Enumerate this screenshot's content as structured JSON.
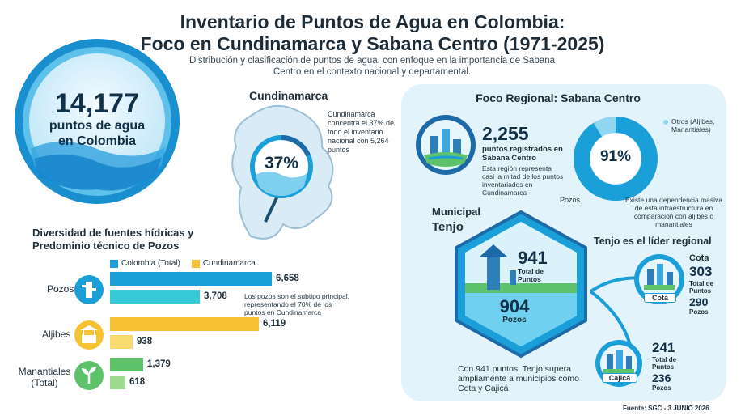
{
  "header": {
    "title_line1": "Inventario de Puntos de Agua en Colombia:",
    "title_line2": "Foco en Cundinamarca y Sabana Centro (1971-2025)",
    "subtitle": "Distribución y clasificación de puntos de agua, con enfoque en la importancia de Sabana Centro en el contexto nacional y departamental."
  },
  "national": {
    "total": "14,177",
    "label_line1": "puntos de agua",
    "label_line2": "en Colombia"
  },
  "cundinamarca": {
    "title": "Cundinamarca",
    "percent": "37%",
    "note": "Cundinamarca concentra el 37% de todo el inventario nacional con 5,264 puntos"
  },
  "diversity": {
    "title_line1": "Diversidad de fuentes hídricas y",
    "title_line2": "Predominio técnico de Pozos",
    "note": "Los pozos son el subtipo principal, representando el 70% de los puntos en Cundinamarca"
  },
  "chart_data": {
    "type": "bar",
    "orientation": "horizontal",
    "categories": [
      "Pozos",
      "Aljibes",
      "Manantiales (Total)"
    ],
    "series": [
      {
        "name": "Colombia (Total)",
        "values": [
          6658,
          6119,
          1379
        ]
      },
      {
        "name": "Cundinamarca",
        "values": [
          3708,
          938,
          618
        ]
      }
    ],
    "value_labels": [
      [
        "6,658",
        "6,119",
        "1,379"
      ],
      [
        "3,708",
        "938",
        "618"
      ]
    ],
    "colors": {
      "Pozos": [
        "#1a9fd9",
        "#35cbd6"
      ],
      "Aljibes": [
        "#f6c233",
        "#f7db6e"
      ],
      "Manantiales (Total)": [
        "#5ec26a",
        "#9bdc8e"
      ]
    },
    "legend_colors": [
      "#1a9fd9",
      "#f6c233"
    ],
    "legend_position": "top",
    "xlim": [
      0,
      7000
    ],
    "grid": false
  },
  "sabana": {
    "title": "Foco Regional: Sabana Centro",
    "registered": "2,255",
    "registered_label": "puntos registrados en Sabana Centro",
    "registered_note": "Esta región representa casi la mitad de los puntos inventariados en Cundinamarca",
    "donut_percent": "91%",
    "donut_share": 0.91,
    "donut_other_label": "Otros (Aljibes, Manantiales)",
    "donut_main_label": "Pozos",
    "donut_note": "Existe una dependencia masiva de esta infraestructura en comparación con aljibes o manantiales"
  },
  "tenjo": {
    "municipal_label": "Municipal",
    "name": "Tenjo",
    "total": "941",
    "total_label": "Total de Puntos",
    "pozos": "904",
    "pozos_label": "Pozos",
    "leader": "Tenjo es el líder regional",
    "note": "Con 941 puntos, Tenjo supera ampliamente a municipios como Cota y Cajicá"
  },
  "cota": {
    "name": "Cota",
    "badge": "Cota",
    "total": "303",
    "total_label": "Total de Puntos",
    "pozos": "290",
    "pozos_label": "Pozos"
  },
  "cajica": {
    "badge": "Cajicá",
    "total": "241",
    "total_label": "Total de Puntos",
    "pozos": "236",
    "pozos_label": "Pozos"
  },
  "footer": {
    "source": "Fuente: SGC - 3 JUNIO 2026"
  }
}
